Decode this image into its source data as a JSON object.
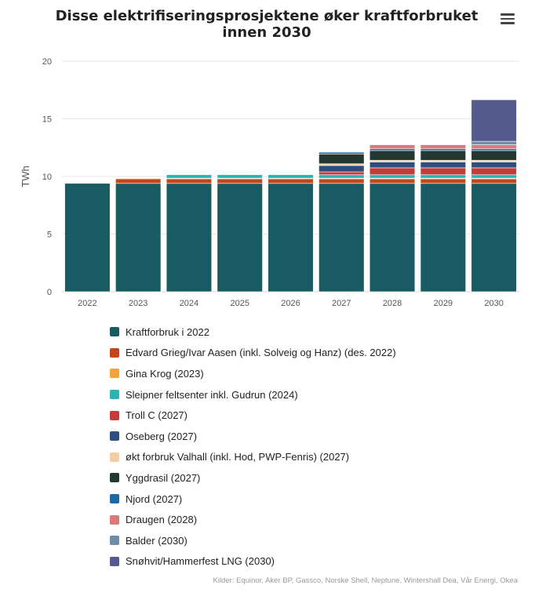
{
  "header": {
    "title": "Disse elektrifiseringsprosjektene øker kraftforbruket innen 2030",
    "menu_icon": "hamburger-menu-icon"
  },
  "chart_data": {
    "type": "bar",
    "stacked": true,
    "ylabel": "TWh",
    "ylim": [
      0,
      20
    ],
    "yticks": [
      0,
      5,
      10,
      15,
      20
    ],
    "categories": [
      "2022",
      "2023",
      "2024",
      "2025",
      "2026",
      "2027",
      "2028",
      "2029",
      "2030"
    ],
    "legend_position": "bottom",
    "grid": true,
    "series": [
      {
        "name": "Kraftforbruk i 2022",
        "color": "#185b62",
        "values": [
          9.4,
          9.4,
          9.4,
          9.4,
          9.4,
          9.4,
          9.4,
          9.4,
          9.4
        ]
      },
      {
        "name": "Edvard Grieg/Ivar Aasen (inkl. Solveig og Hanz) (des. 2022)",
        "color": "#c4461d",
        "values": [
          0,
          0.4,
          0.4,
          0.4,
          0.4,
          0.4,
          0.4,
          0.4,
          0.4
        ]
      },
      {
        "name": "Gina Krog (2023)",
        "color": "#f4a33a",
        "values": [
          0,
          0.05,
          0.05,
          0.05,
          0.05,
          0.05,
          0.05,
          0.05,
          0.05
        ]
      },
      {
        "name": "Sleipner feltsenter inkl. Gudrun (2024)",
        "color": "#2bb5b2",
        "values": [
          0,
          0,
          0.3,
          0.3,
          0.3,
          0.3,
          0.3,
          0.3,
          0.3
        ]
      },
      {
        "name": "Troll C (2027)",
        "color": "#c73a3a",
        "values": [
          0,
          0,
          0,
          0,
          0,
          0.25,
          0.6,
          0.6,
          0.6
        ]
      },
      {
        "name": "Oseberg (2027)",
        "color": "#2e4f7d",
        "values": [
          0,
          0,
          0,
          0,
          0,
          0.55,
          0.5,
          0.5,
          0.5
        ]
      },
      {
        "name": "økt forbruk Valhall (inkl. Hod, PWP-Fenris) (2027)",
        "color": "#f3cda3",
        "values": [
          0,
          0,
          0,
          0,
          0,
          0.15,
          0.15,
          0.15,
          0.15
        ]
      },
      {
        "name": "Yggdrasil (2027)",
        "color": "#243832",
        "values": [
          0,
          0,
          0,
          0,
          0,
          0.85,
          0.85,
          0.85,
          0.85
        ]
      },
      {
        "name": "Njord (2027)",
        "color": "#1b6aa3",
        "values": [
          0,
          0,
          0,
          0,
          0,
          0.15,
          0.15,
          0.15,
          0.15
        ]
      },
      {
        "name": "Draugen (2028)",
        "color": "#dc7a78",
        "values": [
          0,
          0,
          0,
          0,
          0,
          0,
          0.35,
          0.35,
          0.35
        ]
      },
      {
        "name": "Balder (2030)",
        "color": "#6e8ea8",
        "values": [
          0,
          0,
          0,
          0,
          0,
          0,
          0,
          0,
          0.3
        ]
      },
      {
        "name": "Snøhvit/Hammerfest LNG (2030)",
        "color": "#545a8e",
        "values": [
          0,
          0,
          0,
          0,
          0,
          0,
          0,
          0,
          3.6
        ]
      }
    ]
  },
  "credits": "Kilder: Equinor, Aker BP, Gassco, Norske Shell, Neptune, Wintershall Dea, Vår Energi, Okea"
}
